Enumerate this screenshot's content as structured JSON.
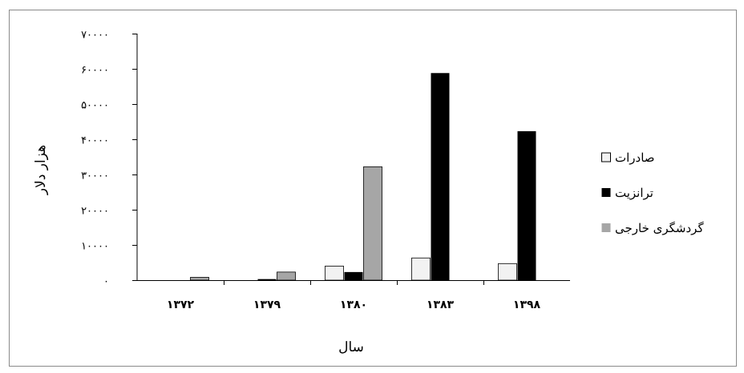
{
  "colors": {
    "exports": "#f2f2f2",
    "transit": "#000000",
    "tourism": "#a6a6a6",
    "frame": "#8a8a8a"
  },
  "chart_data": {
    "type": "bar",
    "title": "",
    "xlabel": "سال",
    "ylabel": "هزار دلار",
    "ylim": [
      0,
      70000
    ],
    "yticks": [
      0,
      10000,
      20000,
      30000,
      40000,
      50000,
      60000,
      70000
    ],
    "ytick_labels": [
      "۰",
      "۱۰۰۰۰",
      "۲۰۰۰۰",
      "۳۰۰۰۰",
      "۴۰۰۰۰",
      "۵۰۰۰۰",
      "۶۰۰۰۰",
      "۷۰۰۰۰"
    ],
    "categories": [
      "۱۳۷۲",
      "۱۳۷۹",
      "۱۳۸۰",
      "۱۳۸۳",
      "۱۳۹۸"
    ],
    "legend_position": "right",
    "grid": false,
    "series": [
      {
        "name": "صادرات",
        "color_key": "exports",
        "values": [
          0,
          0,
          4000,
          6300,
          4700
        ]
      },
      {
        "name": "ترانزیت",
        "color_key": "transit",
        "values": [
          0,
          300,
          2300,
          58800,
          42300
        ]
      },
      {
        "name": "گردشگری خارجی",
        "color_key": "tourism",
        "values": [
          800,
          2300,
          32200,
          0,
          0
        ]
      }
    ]
  }
}
